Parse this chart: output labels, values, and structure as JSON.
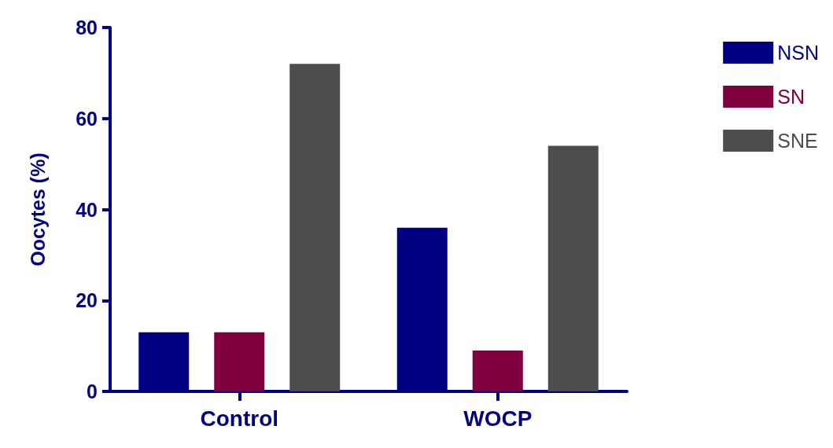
{
  "chart_data": {
    "type": "bar",
    "ylabel": "Oocytes (%)",
    "categories": [
      "Control",
      "WOCP"
    ],
    "series": [
      {
        "name": "NSN",
        "color": "#000080",
        "values": [
          13,
          36
        ]
      },
      {
        "name": "SN",
        "color": "#80003f",
        "values": [
          13,
          9
        ]
      },
      {
        "name": "SNE",
        "color": "#4d4d4d",
        "values": [
          72,
          54
        ]
      }
    ],
    "ylim": [
      0,
      80
    ],
    "yticks": [
      0,
      20,
      40,
      60,
      80
    ],
    "grid": false,
    "legend": "top right"
  }
}
